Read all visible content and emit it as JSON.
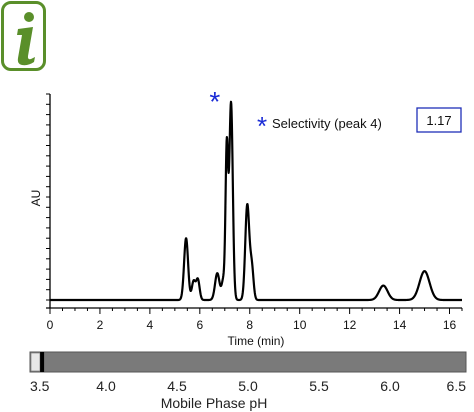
{
  "info_badge": {
    "glyph": "i",
    "icon": "info-icon",
    "color": "#5a8f2a"
  },
  "chart_data": {
    "type": "line",
    "title": "",
    "xlabel": "Time (min)",
    "ylabel": "AU",
    "xlim": [
      0,
      16.5
    ],
    "ylim": [
      0,
      1
    ],
    "x_ticks": [
      0,
      2,
      4,
      6,
      8,
      10,
      12,
      14,
      16
    ],
    "grid": false,
    "baseline": 0.0,
    "peaks": [
      {
        "time": 5.45,
        "height": 0.3,
        "width": 0.08
      },
      {
        "time": 5.75,
        "height": 0.09,
        "width": 0.07
      },
      {
        "time": 5.92,
        "height": 0.1,
        "width": 0.07
      },
      {
        "time": 6.7,
        "height": 0.13,
        "width": 0.09
      },
      {
        "time": 6.95,
        "height": 0.1,
        "width": 0.07
      },
      {
        "time": 7.08,
        "height": 0.72,
        "width": 0.05
      },
      {
        "time": 7.25,
        "height": 0.96,
        "width": 0.07
      },
      {
        "time": 7.9,
        "height": 0.46,
        "width": 0.08
      },
      {
        "time": 8.08,
        "height": 0.16,
        "width": 0.07
      },
      {
        "time": 13.35,
        "height": 0.07,
        "width": 0.17
      },
      {
        "time": 15.0,
        "height": 0.14,
        "width": 0.2
      }
    ],
    "marked_peak_time": 6.6,
    "annotation": {
      "label": "Selectivity (peak 4)",
      "value": "1.17",
      "marker": "*",
      "marker_color": "#1a2bd6"
    }
  },
  "ph_slider": {
    "label": "Mobile Phase pH",
    "min": 3.5,
    "max": 6.5,
    "value": 3.55,
    "ticks": [
      "3.5",
      "4.0",
      "4.5",
      "5.0",
      "5.5",
      "6.0",
      "6.5"
    ],
    "track_color": "#7a7a7a"
  }
}
